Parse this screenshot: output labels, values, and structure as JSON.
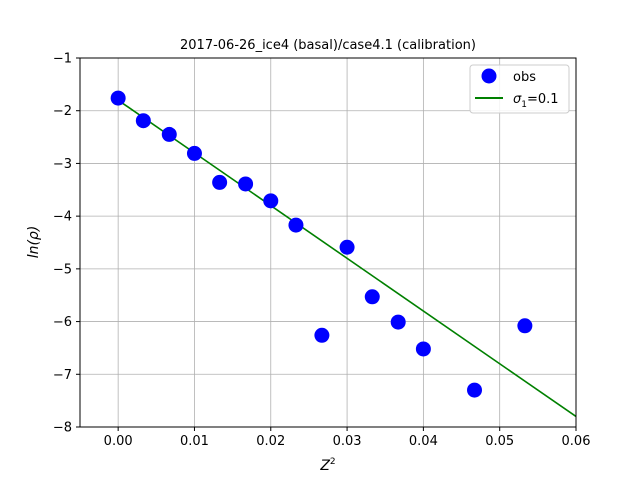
{
  "chart_data": {
    "type": "scatter",
    "title": "2017-06-26_ice4 (basal)/case4.1 (calibration)",
    "xlabel": "Z",
    "xlabel_sup": "2",
    "ylabel": "ln(ρ)",
    "xlim": [
      -0.005,
      0.06
    ],
    "ylim": [
      -8,
      -1
    ],
    "xticks": [
      "0.00",
      "0.01",
      "0.02",
      "0.03",
      "0.04",
      "0.05",
      "0.06"
    ],
    "yticks": [
      "−1",
      "−2",
      "−3",
      "−4",
      "−5",
      "−6",
      "−7",
      "−8"
    ],
    "grid": true,
    "legend_position": "top-right",
    "series": [
      {
        "name": "obs",
        "kind": "scatter",
        "color": "#0000ff",
        "x": [
          0.0,
          0.0033,
          0.0067,
          0.01,
          0.0133,
          0.0167,
          0.02,
          0.0233,
          0.0267,
          0.03,
          0.0333,
          0.0367,
          0.04,
          0.0467,
          0.0533
        ],
        "y": [
          -1.76,
          -2.19,
          -2.45,
          -2.81,
          -3.36,
          -3.39,
          -3.71,
          -4.17,
          -6.26,
          -4.59,
          -5.53,
          -6.01,
          -6.52,
          -7.3,
          -6.08
        ]
      },
      {
        "name_base": "σ",
        "name_sub": "1",
        "name_suffix": "=0.1",
        "kind": "line",
        "color": "#008000",
        "x": [
          0.0,
          0.06
        ],
        "y": [
          -1.8,
          -7.8
        ]
      }
    ]
  }
}
